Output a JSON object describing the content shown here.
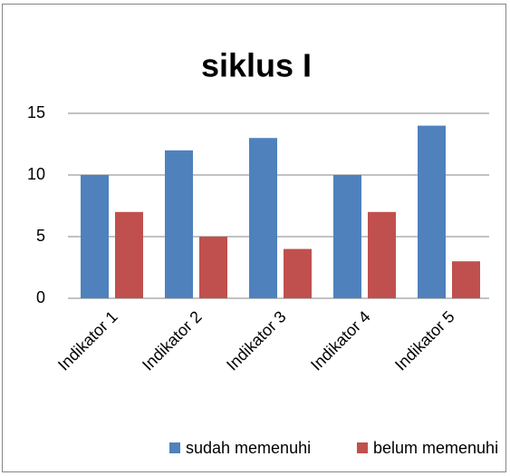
{
  "chart_data": {
    "type": "bar",
    "title": "siklus I",
    "categories": [
      "Indikator 1",
      "Indikator 2",
      "Indikator 3",
      "Indikator 4",
      "Indikator 5"
    ],
    "series": [
      {
        "name": "sudah memenuhi",
        "color": "#4f81bd",
        "values": [
          10,
          12,
          13,
          10,
          14
        ]
      },
      {
        "name": "belum memenuhi",
        "color": "#c0504d",
        "values": [
          7,
          5,
          4,
          7,
          3
        ]
      }
    ],
    "ylim": [
      0,
      15
    ],
    "yticks": [
      0,
      5,
      10,
      15
    ],
    "grid": true,
    "legend": "bottom"
  }
}
